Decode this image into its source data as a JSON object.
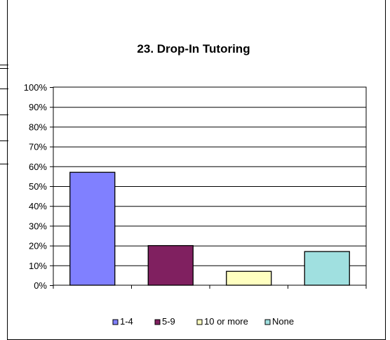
{
  "chart_data": {
    "type": "bar",
    "title": "23. Drop-In Tutoring",
    "xlabel": "",
    "ylabel": "",
    "categories": [
      "1-4",
      "5-9",
      "10 or more",
      "None"
    ],
    "values": [
      57,
      20,
      7,
      17
    ],
    "colors": [
      "#8080ff",
      "#802060",
      "#ffffc0",
      "#a0e0e0"
    ],
    "ylim": [
      0,
      100
    ],
    "yticks": [
      "0%",
      "10%",
      "20%",
      "30%",
      "40%",
      "50%",
      "60%",
      "70%",
      "80%",
      "90%",
      "100%"
    ],
    "grid": true,
    "legend": {
      "placement": "bottom",
      "entries": [
        "1-4",
        "5-9",
        "10 or more",
        "None"
      ]
    }
  }
}
